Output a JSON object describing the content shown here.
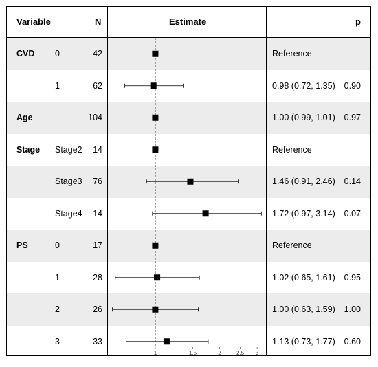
{
  "header": {
    "variable": "Variable",
    "n": "N",
    "estimate": "Estimate",
    "p": "p"
  },
  "rows": [
    {
      "variable": "CVD",
      "level": "0",
      "n": "42",
      "estimate_text": "Reference",
      "p": ""
    },
    {
      "variable": "",
      "level": "1",
      "n": "62",
      "estimate_text": "0.98 (0.72, 1.35)",
      "p": "0.90"
    },
    {
      "variable": "Age",
      "level": "",
      "n": "104",
      "estimate_text": "1.00 (0.99, 1.01)",
      "p": "0.97"
    },
    {
      "variable": "Stage",
      "level": "Stage2",
      "n": "14",
      "estimate_text": "Reference",
      "p": ""
    },
    {
      "variable": "",
      "level": "Stage3",
      "n": "76",
      "estimate_text": "1.46 (0.91, 2.46)",
      "p": "0.14"
    },
    {
      "variable": "",
      "level": "Stage4",
      "n": "14",
      "estimate_text": "1.72 (0.97, 3.14)",
      "p": "0.07"
    },
    {
      "variable": "PS",
      "level": "0",
      "n": "17",
      "estimate_text": "Reference",
      "p": ""
    },
    {
      "variable": "",
      "level": "1",
      "n": "28",
      "estimate_text": "1.02 (0.65, 1.61)",
      "p": "0.95"
    },
    {
      "variable": "",
      "level": "2",
      "n": "26",
      "estimate_text": "1.00 (0.63, 1.59)",
      "p": "1.00"
    },
    {
      "variable": "",
      "level": "3",
      "n": "33",
      "estimate_text": "1.13 (0.73, 1.77)",
      "p": "0.60"
    }
  ],
  "chart_data": {
    "type": "forest",
    "scale": "log",
    "reference_line": 1,
    "xlim": [
      0.6,
      3.3
    ],
    "xticks": [
      1,
      1.5,
      2,
      2.5,
      3
    ],
    "xtick_labels": [
      "1",
      "1.5",
      "2",
      "2.5",
      "3"
    ],
    "points": [
      {
        "est": 1,
        "lo": null,
        "hi": null
      },
      {
        "est": 0.98,
        "lo": 0.72,
        "hi": 1.35
      },
      {
        "est": 1.0,
        "lo": 0.99,
        "hi": 1.01
      },
      {
        "est": 1,
        "lo": null,
        "hi": null
      },
      {
        "est": 1.46,
        "lo": 0.91,
        "hi": 2.46
      },
      {
        "est": 1.72,
        "lo": 0.97,
        "hi": 3.14
      },
      {
        "est": 1,
        "lo": null,
        "hi": null
      },
      {
        "est": 1.02,
        "lo": 0.65,
        "hi": 1.61
      },
      {
        "est": 1.0,
        "lo": 0.63,
        "hi": 1.59
      },
      {
        "est": 1.13,
        "lo": 0.73,
        "hi": 1.77
      }
    ],
    "colors": {
      "shade": "#ececec",
      "marker": "#000000"
    }
  }
}
